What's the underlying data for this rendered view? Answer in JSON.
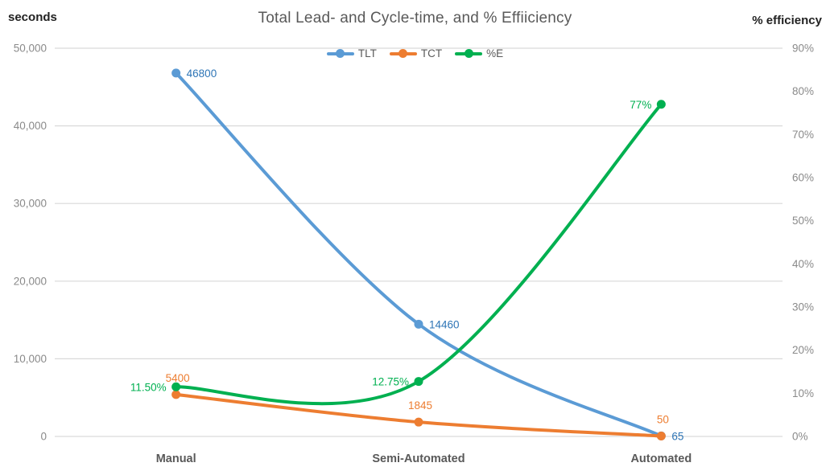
{
  "chart_data": {
    "type": "line",
    "title": "Total Lead- and Cycle-time, and % Effiiciency",
    "left_axis": {
      "title": "seconds",
      "min": 0,
      "max": 50000,
      "ticks": [
        "50,000",
        "40,000",
        "30,000",
        "20,000",
        "10,000",
        "0"
      ]
    },
    "right_axis": {
      "title": "% efficiency",
      "min": 0,
      "max": 90,
      "ticks": [
        "90%",
        "80%",
        "70%",
        "60%",
        "50%",
        "40%",
        "30%",
        "20%",
        "10%",
        "0%"
      ]
    },
    "categories": [
      "Manual",
      "Semi-Automated",
      "Automated"
    ],
    "series": [
      {
        "name": "TLT",
        "axis": "left",
        "color": "#5B9BD5",
        "label_color": "#2E75B6",
        "values": [
          46800,
          14460,
          65
        ],
        "labels": [
          "46800",
          "14460",
          "65"
        ],
        "label_side": "right"
      },
      {
        "name": "TCT",
        "axis": "left",
        "color": "#ED7D31",
        "label_color": "#ED7D31",
        "values": [
          5400,
          1845,
          50
        ],
        "labels": [
          "5400",
          "1845",
          "50"
        ],
        "label_side": "above"
      },
      {
        "name": "%E",
        "axis": "right",
        "color": "#00B050",
        "label_color": "#00B050",
        "values": [
          11.5,
          12.75,
          77
        ],
        "labels": [
          "11.50%",
          "12.75%",
          "77%"
        ],
        "label_side": "left"
      }
    ],
    "legend": {
      "position": "top"
    },
    "grid": {
      "color": "#D9D9D9",
      "horizontal": true,
      "vertical": false
    },
    "text_colors": {
      "axis_ticks": "#8a8a8a",
      "title": "#595959",
      "category": "#595959",
      "axis_titles": "#222222"
    }
  }
}
